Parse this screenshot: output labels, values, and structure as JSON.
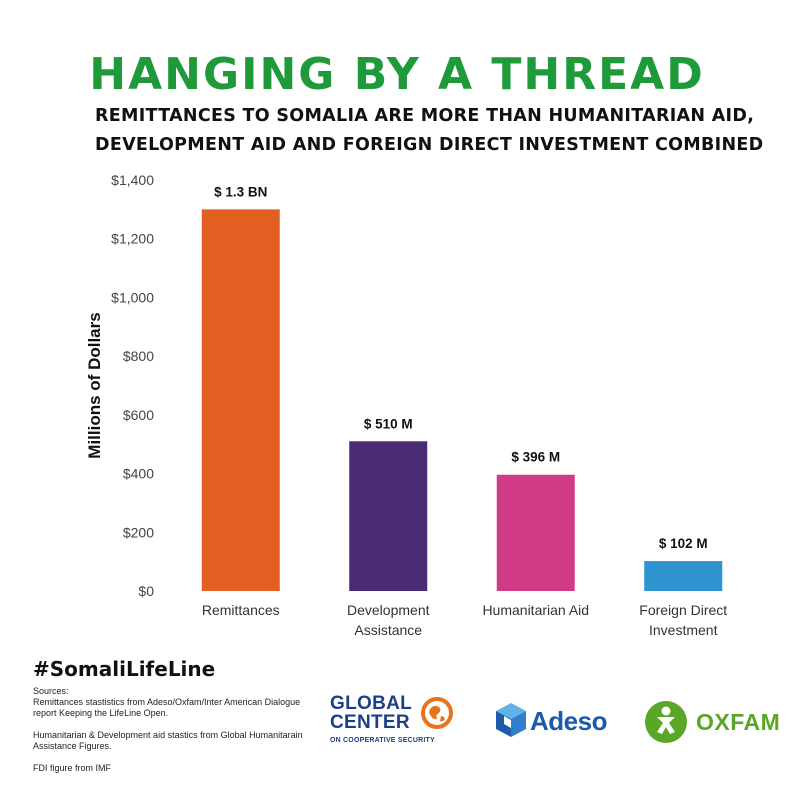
{
  "title": "HANGING BY A THREAD",
  "subtitle_line1": "REMITTANCES TO SOMALIA ARE MORE THAN HUMANITARIAN AID,",
  "subtitle_line2": "DEVELOPMENT AID AND FOREIGN DIRECT INVESTMENT COMBINED",
  "chart_data": {
    "type": "bar",
    "ylabel": "Millions of Dollars",
    "ylim": [
      0,
      1400
    ],
    "yticks": [
      0,
      200,
      400,
      600,
      800,
      1000,
      1200,
      1400
    ],
    "ytick_labels": [
      "$0",
      "$200",
      "$400",
      "$600",
      "$800",
      "$1,000",
      "$1,200",
      "$1,400"
    ],
    "grid": false,
    "categories": [
      [
        "Remittances"
      ],
      [
        "Development",
        "Assistance"
      ],
      [
        "Humanitarian Aid"
      ],
      [
        "Foreign Direct",
        "Investment"
      ]
    ],
    "values": [
      1300,
      510,
      396,
      102
    ],
    "data_labels": [
      "$ 1.3 BN",
      "$ 510 M",
      "$ 396 M",
      "$ 102 M"
    ],
    "colors": [
      "#e25f22",
      "#4a2a72",
      "#d03b86",
      "#2f93d0"
    ]
  },
  "hashtag": "#SomaliLifeLine",
  "sources": {
    "heading": "Sources:",
    "line1": "Remittances stastistics from Adeso/Oxfam/Inter American Dialogue report Keeping the LifeLine Open.",
    "line2": "Humanitarian & Development aid stastics from Global Humanitarain Assistance Figures.",
    "line3": "FDI figure from IMF"
  },
  "logos": {
    "global_center_word1": "GLOBAL",
    "global_center_word2": "CENTER",
    "global_center_tagline": "ON COOPERATIVE SECURITY",
    "adeso": "Adeso",
    "oxfam": "OXFAM"
  },
  "colors": {
    "title_green": "#1e9a3a",
    "global_center_blue": "#1d3f8a",
    "global_center_orange": "#e8731f",
    "adeso_blue": "#1d5aa8",
    "oxfam_green": "#5aa627"
  },
  "icons": [
    "globe-icon",
    "adeso-cube-icon",
    "oxfam-figure-icon"
  ]
}
